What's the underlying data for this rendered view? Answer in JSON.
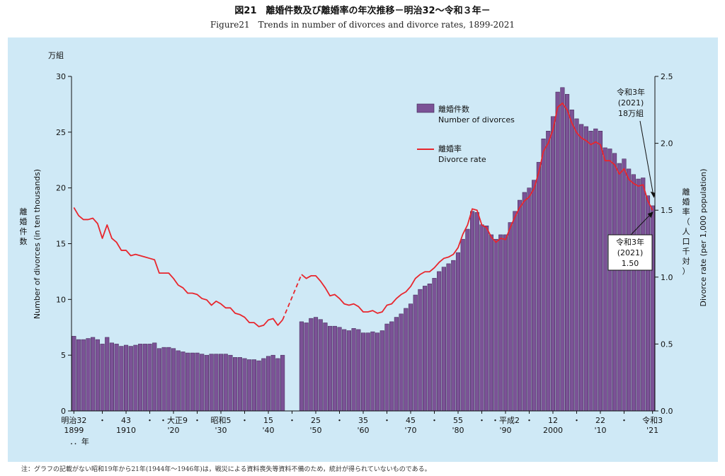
{
  "title_jp": "図21　離婚件数及び離婚率の年次推移－明治32～令和３年－",
  "title_en": "Figure21　Trends in number of divorces and divorce rates, 1899-2021",
  "note": "注：グラフの記載がない昭和19年から21年(1944年～1946年)は，戦災による資料喪失等資料不備のため，統計が得られていないものである。",
  "colors": {
    "bar": "#7b5296",
    "line": "#e8262d",
    "background": "#cfe9f6"
  },
  "chart_data": {
    "type": "bar+line",
    "left_unit": "万組",
    "ylabel_left_jp": "離婚件数",
    "ylabel_left_en": "Number of divorces (in ten thousands)",
    "ylabel_right_jp": "離婚率（人口千対）",
    "ylabel_right_en": "Divorce rate (per 1,000 population)",
    "ylim_left": [
      0,
      30
    ],
    "yticks_left": [
      "0",
      "5",
      "10",
      "15",
      "20",
      "25",
      "30"
    ],
    "ylim_right": [
      0,
      2.5
    ],
    "yticks_right": [
      "0.0",
      "0.5",
      "1.0",
      "1.5",
      "2.0",
      "2.5"
    ],
    "xlim": [
      1899,
      2021
    ],
    "x_ticks": [
      {
        "year": 1899,
        "top": "明治32",
        "bottom": "1899"
      },
      {
        "year": 1905,
        "top": "・",
        "bottom": ""
      },
      {
        "year": 1910,
        "top": "43",
        "bottom": "1910"
      },
      {
        "year": 1915,
        "top": "・",
        "bottom": ""
      },
      {
        "year": 1920,
        "top": "・大正9",
        "bottom": "'20"
      },
      {
        "year": 1925,
        "top": "・",
        "bottom": ""
      },
      {
        "year": 1930,
        "top": "昭和5",
        "bottom": "'30"
      },
      {
        "year": 1935,
        "top": "・",
        "bottom": ""
      },
      {
        "year": 1940,
        "top": "15",
        "bottom": "'40"
      },
      {
        "year": 1945,
        "top": "・",
        "bottom": ""
      },
      {
        "year": 1950,
        "top": "25",
        "bottom": "'50"
      },
      {
        "year": 1955,
        "top": "・",
        "bottom": ""
      },
      {
        "year": 1960,
        "top": "35",
        "bottom": "'60"
      },
      {
        "year": 1965,
        "top": "・",
        "bottom": ""
      },
      {
        "year": 1970,
        "top": "45",
        "bottom": "'70"
      },
      {
        "year": 1975,
        "top": "・",
        "bottom": ""
      },
      {
        "year": 1980,
        "top": "55",
        "bottom": "'80"
      },
      {
        "year": 1985,
        "top": "・",
        "bottom": ""
      },
      {
        "year": 1990,
        "top": "・平成2",
        "bottom": "'90"
      },
      {
        "year": 1995,
        "top": "・",
        "bottom": ""
      },
      {
        "year": 2000,
        "top": "12",
        "bottom": "2000"
      },
      {
        "year": 2005,
        "top": "・",
        "bottom": ""
      },
      {
        "year": 2010,
        "top": "22",
        "bottom": "'10"
      },
      {
        "year": 2015,
        "top": "・",
        "bottom": ""
      },
      {
        "year": 2021,
        "top": "令和3",
        "bottom": "'21"
      }
    ],
    "year_suffix": "．．年",
    "legend": [
      {
        "type": "bar",
        "jp": "離婚件数",
        "en": "Number of divorces"
      },
      {
        "type": "line",
        "jp": "離婚率",
        "en": "Divorce rate"
      }
    ],
    "legend_position": "upper-center",
    "annotations": {
      "count_2021": [
        "令和3年",
        "(2021)",
        "18万組"
      ],
      "rate_2021": [
        "令和3年",
        "(2021)",
        "1.50"
      ]
    },
    "divorces": {
      "years": [
        1899,
        1900,
        1901,
        1902,
        1903,
        1904,
        1905,
        1906,
        1907,
        1908,
        1909,
        1910,
        1911,
        1912,
        1913,
        1914,
        1915,
        1916,
        1917,
        1918,
        1919,
        1920,
        1921,
        1922,
        1923,
        1924,
        1925,
        1926,
        1927,
        1928,
        1929,
        1930,
        1931,
        1932,
        1933,
        1934,
        1935,
        1936,
        1937,
        1938,
        1939,
        1940,
        1941,
        1942,
        1943,
        1947,
        1948,
        1949,
        1950,
        1951,
        1952,
        1953,
        1954,
        1955,
        1956,
        1957,
        1958,
        1959,
        1960,
        1961,
        1962,
        1963,
        1964,
        1965,
        1966,
        1967,
        1968,
        1969,
        1970,
        1971,
        1972,
        1973,
        1974,
        1975,
        1976,
        1977,
        1978,
        1979,
        1980,
        1981,
        1982,
        1983,
        1984,
        1985,
        1986,
        1987,
        1988,
        1989,
        1990,
        1991,
        1992,
        1993,
        1994,
        1995,
        1996,
        1997,
        1998,
        1999,
        2000,
        2001,
        2002,
        2003,
        2004,
        2005,
        2006,
        2007,
        2008,
        2009,
        2010,
        2011,
        2012,
        2013,
        2014,
        2015,
        2016,
        2017,
        2018,
        2019,
        2020,
        2021
      ],
      "values": [
        6.7,
        6.4,
        6.4,
        6.5,
        6.6,
        6.4,
        6.0,
        6.6,
        6.1,
        6.0,
        5.8,
        5.9,
        5.8,
        5.9,
        6.0,
        6.0,
        6.0,
        6.1,
        5.6,
        5.7,
        5.7,
        5.6,
        5.4,
        5.3,
        5.2,
        5.2,
        5.2,
        5.1,
        5.0,
        5.1,
        5.1,
        5.1,
        5.1,
        5.0,
        4.8,
        4.8,
        4.7,
        4.6,
        4.6,
        4.5,
        4.7,
        4.9,
        5.0,
        4.7,
        5.0,
        8.0,
        7.9,
        8.3,
        8.4,
        8.2,
        7.9,
        7.6,
        7.6,
        7.5,
        7.3,
        7.2,
        7.4,
        7.3,
        7.0,
        7.0,
        7.1,
        7.0,
        7.2,
        7.8,
        8.0,
        8.4,
        8.7,
        9.2,
        9.6,
        10.4,
        10.9,
        11.2,
        11.4,
        11.9,
        12.5,
        12.9,
        13.2,
        13.5,
        14.2,
        15.4,
        16.3,
        17.9,
        17.8,
        16.7,
        16.6,
        15.8,
        15.4,
        15.8,
        15.8,
        16.9,
        17.9,
        18.9,
        19.6,
        20.0,
        20.7,
        22.3,
        24.4,
        25.1,
        26.4,
        28.6,
        29.0,
        28.4,
        27.0,
        26.2,
        25.7,
        25.5,
        25.1,
        25.3,
        25.1,
        23.6,
        23.5,
        23.1,
        22.2,
        22.6,
        21.7,
        21.2,
        20.8,
        20.9,
        19.3,
        18.4
      ]
    },
    "divorce_rate": {
      "segments": [
        {
          "style": "solid",
          "points": [
            [
              1899,
              1.52
            ],
            [
              1900,
              1.46
            ],
            [
              1901,
              1.43
            ],
            [
              1902,
              1.43
            ],
            [
              1903,
              1.44
            ],
            [
              1904,
              1.4
            ],
            [
              1905,
              1.29
            ],
            [
              1906,
              1.39
            ],
            [
              1907,
              1.29
            ],
            [
              1908,
              1.26
            ],
            [
              1909,
              1.2
            ],
            [
              1910,
              1.2
            ],
            [
              1911,
              1.16
            ],
            [
              1912,
              1.17
            ],
            [
              1913,
              1.16
            ],
            [
              1914,
              1.15
            ],
            [
              1915,
              1.14
            ],
            [
              1916,
              1.13
            ],
            [
              1917,
              1.03
            ],
            [
              1918,
              1.03
            ],
            [
              1919,
              1.03
            ],
            [
              1920,
              0.99
            ],
            [
              1921,
              0.94
            ],
            [
              1922,
              0.92
            ],
            [
              1923,
              0.88
            ],
            [
              1924,
              0.88
            ],
            [
              1925,
              0.87
            ],
            [
              1926,
              0.84
            ],
            [
              1927,
              0.83
            ],
            [
              1928,
              0.79
            ],
            [
              1929,
              0.82
            ],
            [
              1930,
              0.8
            ],
            [
              1931,
              0.77
            ],
            [
              1932,
              0.77
            ],
            [
              1933,
              0.73
            ],
            [
              1934,
              0.72
            ],
            [
              1935,
              0.7
            ],
            [
              1936,
              0.66
            ],
            [
              1937,
              0.66
            ],
            [
              1938,
              0.63
            ],
            [
              1939,
              0.64
            ],
            [
              1940,
              0.68
            ],
            [
              1941,
              0.69
            ],
            [
              1942,
              0.64
            ],
            [
              1943,
              0.68
            ]
          ]
        },
        {
          "style": "dashed",
          "points": [
            [
              1943,
              0.68
            ],
            [
              1947,
              1.02
            ]
          ]
        },
        {
          "style": "solid",
          "points": [
            [
              1947,
              1.02
            ],
            [
              1948,
              0.99
            ],
            [
              1949,
              1.01
            ],
            [
              1950,
              1.01
            ],
            [
              1951,
              0.97
            ],
            [
              1952,
              0.92
            ],
            [
              1953,
              0.86
            ],
            [
              1954,
              0.87
            ],
            [
              1955,
              0.84
            ],
            [
              1956,
              0.8
            ],
            [
              1957,
              0.79
            ],
            [
              1958,
              0.8
            ],
            [
              1959,
              0.78
            ],
            [
              1960,
              0.74
            ],
            [
              1961,
              0.74
            ],
            [
              1962,
              0.75
            ],
            [
              1963,
              0.73
            ],
            [
              1964,
              0.74
            ],
            [
              1965,
              0.79
            ],
            [
              1966,
              0.8
            ],
            [
              1967,
              0.84
            ],
            [
              1968,
              0.87
            ],
            [
              1969,
              0.89
            ],
            [
              1970,
              0.93
            ],
            [
              1971,
              0.99
            ],
            [
              1972,
              1.02
            ],
            [
              1973,
              1.04
            ],
            [
              1974,
              1.04
            ],
            [
              1975,
              1.07
            ],
            [
              1976,
              1.11
            ],
            [
              1977,
              1.14
            ],
            [
              1978,
              1.15
            ],
            [
              1979,
              1.17
            ],
            [
              1980,
              1.22
            ],
            [
              1981,
              1.32
            ],
            [
              1982,
              1.39
            ],
            [
              1983,
              1.51
            ],
            [
              1984,
              1.5
            ],
            [
              1985,
              1.39
            ],
            [
              1986,
              1.37
            ],
            [
              1987,
              1.3
            ],
            [
              1988,
              1.26
            ],
            [
              1989,
              1.29
            ],
            [
              1990,
              1.28
            ],
            [
              1991,
              1.37
            ],
            [
              1992,
              1.45
            ],
            [
              1993,
              1.52
            ],
            [
              1994,
              1.57
            ],
            [
              1995,
              1.6
            ],
            [
              1996,
              1.66
            ],
            [
              1997,
              1.78
            ],
            [
              1998,
              1.94
            ],
            [
              1999,
              2.0
            ],
            [
              2000,
              2.1
            ],
            [
              2001,
              2.27
            ],
            [
              2002,
              2.3
            ],
            [
              2003,
              2.25
            ],
            [
              2004,
              2.15
            ],
            [
              2005,
              2.08
            ],
            [
              2006,
              2.04
            ],
            [
              2007,
              2.02
            ],
            [
              2008,
              1.99
            ],
            [
              2009,
              2.01
            ],
            [
              2010,
              1.99
            ],
            [
              2011,
              1.87
            ],
            [
              2012,
              1.87
            ],
            [
              2013,
              1.84
            ],
            [
              2014,
              1.77
            ],
            [
              2015,
              1.81
            ],
            [
              2016,
              1.73
            ],
            [
              2017,
              1.7
            ],
            [
              2018,
              1.68
            ],
            [
              2019,
              1.69
            ],
            [
              2020,
              1.57
            ],
            [
              2021,
              1.5
            ]
          ]
        }
      ]
    }
  }
}
